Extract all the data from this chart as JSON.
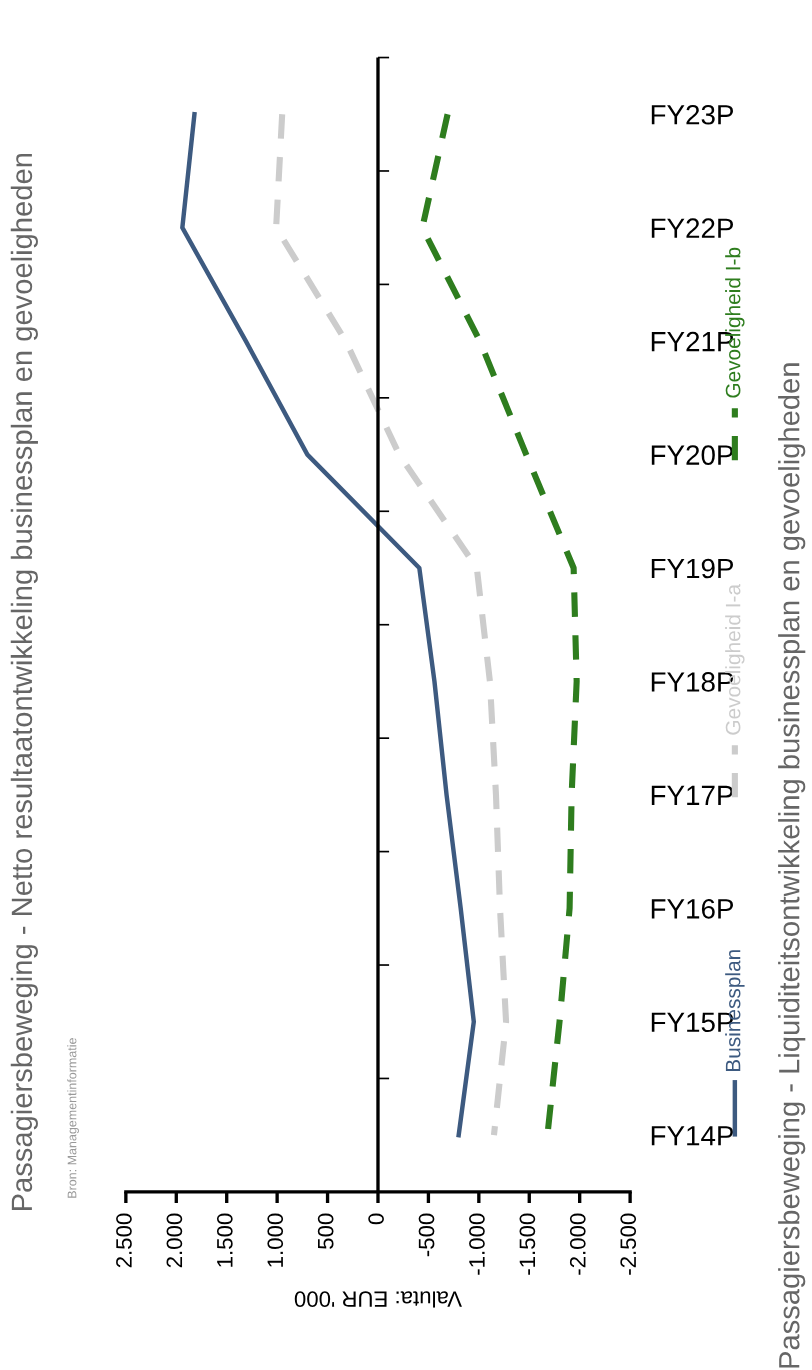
{
  "chart_data": {
    "type": "line",
    "orientation": "horizontal",
    "title": "Passagiersbeweging - Netto resultaatontwikkeling businessplan en gevoeligheden",
    "xlabel": "Valuta: EUR '000",
    "annotations": [
      "Bron: Managementinformatie",
      "Passagiersbeweging - Liquiditeitsontwikkeling businessplan en gevoeligheden"
    ],
    "categories": [
      "FY23P",
      "FY22P",
      "FY21P",
      "FY20P",
      "FY19P",
      "FY18P",
      "FY17P",
      "FY16P",
      "FY15P",
      "FY14P"
    ],
    "series": [
      {
        "name": "Businessplan",
        "color": "#3d5a80",
        "line_style": "solid",
        "values": [
          1820,
          1940,
          1310,
          700,
          -410,
          -560,
          -680,
          -820,
          -950,
          -800
        ]
      },
      {
        "name": "Gevoeligheid I-a",
        "color": "#cccccc",
        "line_style": "dashed",
        "values": [
          950,
          1010,
          320,
          -210,
          -980,
          -1110,
          -1170,
          -1210,
          -1270,
          -1150
        ]
      },
      {
        "name": "Gevoeligheid I-b",
        "color": "#2e7d1e",
        "line_style": "dashed",
        "values": [
          -690,
          -440,
          -1010,
          -1470,
          -1940,
          -1970,
          -1920,
          -1900,
          -1800,
          -1680
        ]
      }
    ],
    "xlim": [
      2500,
      -2500
    ],
    "xticks": [
      {
        "value": 2500,
        "label": "2.500"
      },
      {
        "value": 2000,
        "label": "2.000"
      },
      {
        "value": 1500,
        "label": "1.500"
      },
      {
        "value": 1000,
        "label": "1.000"
      },
      500,
      0,
      -500,
      {
        "value": -1000,
        "label": "-1.000"
      },
      {
        "value": -1500,
        "label": "-1.500"
      },
      {
        "value": -2000,
        "label": "-2.000"
      },
      {
        "value": -2500,
        "label": "-2.500"
      }
    ],
    "grid": false,
    "ref_lines": [
      {
        "axis": "x",
        "value": 0,
        "color": "#000000"
      }
    ],
    "legend": "right"
  }
}
